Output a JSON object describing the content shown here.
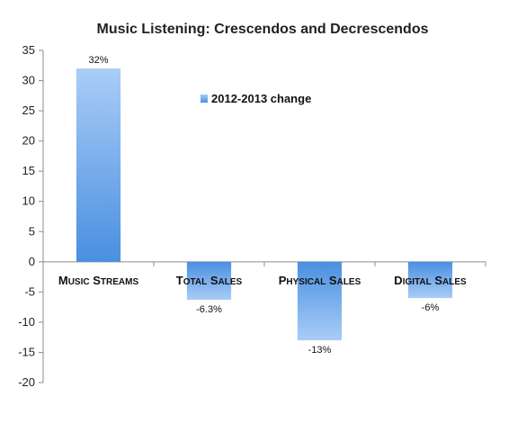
{
  "chart_data": {
    "type": "bar",
    "title": "Music Listening: Crescendos and Decrescendos",
    "categories": [
      "Music streams",
      "Total sales",
      "Physical sales",
      "Digital sales"
    ],
    "series": [
      {
        "name": "2012-2013 change",
        "values": [
          32,
          -6.3,
          -13,
          -6
        ],
        "data_labels": [
          "32%",
          "-6.3%",
          "-13%",
          "-6%"
        ]
      }
    ],
    "ylim": [
      -20,
      35
    ],
    "yticks": [
      35,
      30,
      25,
      20,
      15,
      10,
      5,
      0,
      -5,
      -10,
      -15,
      -20
    ],
    "grid": false,
    "legend": "inside-top-center",
    "colors": {
      "bar_light": "#a9cdf7",
      "bar_dark": "#4a8fe0",
      "axis": "#8c8c8c"
    }
  }
}
